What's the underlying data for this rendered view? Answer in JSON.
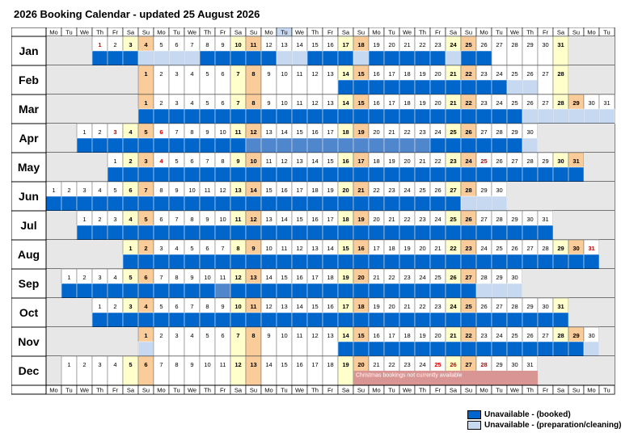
{
  "title": "2026 Booking Calendar - updated 25 August 2026",
  "weekday_headers": [
    "Mo",
    "Tu",
    "We",
    "Th",
    "Fr",
    "Sa",
    "Su",
    "Mo",
    "Tu",
    "We",
    "Th",
    "Fr",
    "Sa",
    "Su",
    "Mo",
    "Tu",
    "We",
    "Th",
    "Fr",
    "Sa",
    "Su",
    "Mo",
    "Tu",
    "We",
    "Th",
    "Fr",
    "Sa",
    "Su",
    "Mo",
    "Tu",
    "We",
    "Th",
    "Fr",
    "Sa",
    "Su",
    "Mo",
    "Tu"
  ],
  "highlighted_header_column": 15,
  "colors": {
    "booked": "#0066cc",
    "cleaning": "#c6d9f1",
    "saturday": "#ffffcc",
    "sunday": "#f9cc9a",
    "holiday_text": "#cc0000",
    "empty_cell": "#e7e7e7",
    "christmas_block": "#d99594",
    "grid": "#000000"
  },
  "months": [
    {
      "name": "Jan",
      "start": 3,
      "days": 31,
      "holidays": [
        1
      ],
      "booked": [
        1,
        2,
        3,
        8,
        9,
        10,
        11,
        12,
        15,
        16,
        17,
        19,
        20,
        21,
        22,
        23,
        25,
        26
      ],
      "cleaning": [
        4,
        5,
        6,
        7,
        13,
        14,
        18,
        24
      ],
      "highlight": []
    },
    {
      "name": "Feb",
      "start": 6,
      "days": 28,
      "holidays": [],
      "booked": [
        14,
        15,
        16,
        17,
        18,
        19,
        20,
        21,
        22,
        23,
        24
      ],
      "cleaning": [
        25,
        26
      ],
      "highlight": []
    },
    {
      "name": "Mar",
      "start": 6,
      "days": 31,
      "holidays": [],
      "booked": [
        1,
        2,
        3,
        4,
        5,
        6,
        7,
        8,
        9,
        10,
        11,
        12,
        13,
        14,
        15,
        16,
        17,
        18,
        19,
        20,
        21,
        22,
        23,
        24,
        25
      ],
      "cleaning": [
        26,
        27,
        28,
        29,
        30,
        31
      ],
      "highlight": []
    },
    {
      "name": "Apr",
      "start": 2,
      "days": 30,
      "holidays": [
        3,
        6
      ],
      "booked": [
        1,
        2,
        3,
        4,
        5,
        6,
        7,
        8,
        9,
        10,
        11,
        12,
        13,
        14,
        15,
        16,
        17,
        18,
        19,
        20,
        21,
        22,
        23,
        24,
        25,
        26,
        27,
        28,
        29
      ],
      "cleaning": [
        30
      ],
      "highlight": [
        12,
        13,
        14,
        15,
        16,
        17,
        18,
        19,
        20,
        21,
        22,
        23
      ]
    },
    {
      "name": "May",
      "start": 4,
      "days": 31,
      "holidays": [
        4,
        25
      ],
      "booked": [
        1,
        2,
        3,
        4,
        5,
        6,
        7,
        8,
        9,
        10,
        11,
        12,
        13,
        14,
        15,
        16,
        17,
        18,
        19,
        20,
        21,
        22,
        23,
        24,
        25,
        26,
        27,
        28,
        29,
        30,
        31
      ],
      "cleaning": [],
      "highlight": []
    },
    {
      "name": "Jun",
      "start": 0,
      "days": 30,
      "holidays": [],
      "booked": [
        1,
        2,
        3,
        4,
        5,
        6,
        7,
        8,
        9,
        10,
        11,
        12,
        13,
        14,
        15,
        16,
        17,
        18,
        19,
        20,
        21,
        22,
        23,
        24,
        25,
        26,
        27
      ],
      "cleaning": [
        28,
        29,
        30
      ],
      "highlight": []
    },
    {
      "name": "Jul",
      "start": 2,
      "days": 31,
      "holidays": [],
      "booked": [
        1,
        2,
        3,
        4,
        5,
        6,
        7,
        8,
        9,
        10,
        11,
        12,
        13,
        14,
        15,
        16,
        17,
        18,
        19,
        20,
        21,
        22,
        23,
        24,
        25,
        26,
        27,
        28,
        29,
        30,
        31
      ],
      "cleaning": [],
      "highlight": []
    },
    {
      "name": "Aug",
      "start": 5,
      "days": 31,
      "holidays": [
        31
      ],
      "booked": [
        1,
        2,
        3,
        4,
        5,
        6,
        7,
        8,
        9,
        10,
        11,
        12,
        13,
        14,
        15,
        16,
        17,
        18,
        19,
        20,
        21,
        22,
        23,
        24,
        25,
        26,
        27,
        28,
        29,
        30,
        31
      ],
      "cleaning": [],
      "highlight": []
    },
    {
      "name": "Sep",
      "start": 1,
      "days": 30,
      "holidays": [],
      "booked": [
        1,
        2,
        3,
        4,
        5,
        6,
        7,
        8,
        9,
        10,
        11,
        12,
        13,
        14,
        15,
        16,
        17,
        18,
        19,
        20,
        21,
        22,
        23,
        24,
        25,
        26,
        27
      ],
      "cleaning": [
        28,
        29,
        30
      ],
      "highlight": [
        11
      ]
    },
    {
      "name": "Oct",
      "start": 3,
      "days": 31,
      "holidays": [],
      "booked": [
        1,
        2,
        3,
        4,
        5,
        6,
        7,
        8,
        9,
        10,
        11,
        12,
        13,
        14,
        15,
        16,
        17,
        18,
        19,
        20,
        21,
        22,
        23,
        24,
        25,
        26,
        27,
        28,
        29,
        30,
        31
      ],
      "cleaning": [],
      "highlight": []
    },
    {
      "name": "Nov",
      "start": 6,
      "days": 30,
      "holidays": [],
      "booked": [
        14,
        15,
        16,
        17,
        18,
        19,
        20,
        21,
        22,
        23,
        24,
        25,
        26,
        27,
        28,
        29
      ],
      "cleaning": [
        1,
        30
      ],
      "highlight": []
    },
    {
      "name": "Dec",
      "start": 1,
      "days": 31,
      "holidays": [
        25,
        26,
        28
      ],
      "booked": [],
      "cleaning": [],
      "highlight": [],
      "note_start": 20,
      "note_end": 31,
      "note": "Christmas bookings not currently available"
    }
  ],
  "legend": [
    {
      "label": "Unavailable - (booked)",
      "color": "#0066cc"
    },
    {
      "label": "Unavailable - (preparation/cleaning)",
      "color": "#c6d9f1"
    }
  ]
}
